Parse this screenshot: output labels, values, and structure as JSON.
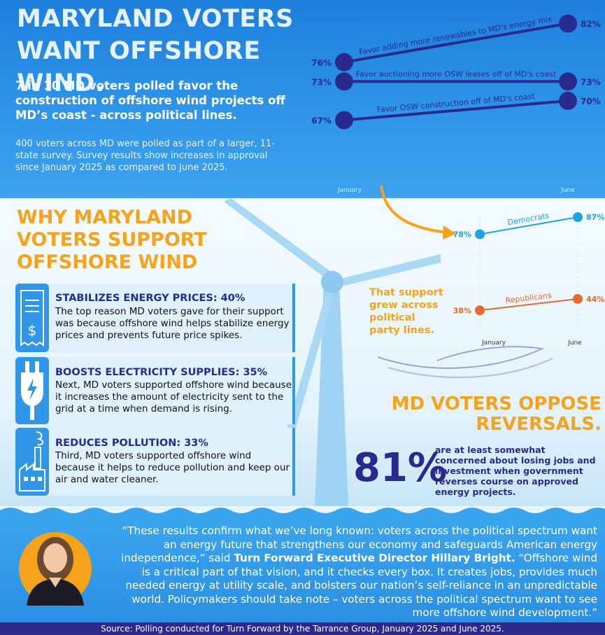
{
  "title": "MARYLAND VOTERS WANT OFFSHORE WIND.",
  "lead": {
    "emphasis": "7 in 10",
    "text": " MD voters polled favor the construction of offshore wind projects off MD’s coast - across political lines."
  },
  "sub_text": "400 voters across MD were polled as part of a larger, 11-state survey. Survey results show increases in approval since January 2025 as compared to June 2025.",
  "why_heading": "WHY MARYLAND VOTERS SUPPORT OFFSHORE WIND",
  "reasons": [
    {
      "heading": "STABILIZES ENERGY PRICES: 40%",
      "body": "The top reason MD voters gave for their support was because offshore wind helps stabilize energy prices and prevents future price spikes.",
      "icon": "receipt-dollar-icon"
    },
    {
      "heading": "BOOSTS ELECTRICITY SUPPLIES: 35%",
      "body": "Next, MD voters supported offshore wind because it increases the amount of electricity sent to the grid at a time when demand is rising.",
      "icon": "power-plug-icon"
    },
    {
      "heading": "REDUCES POLLUTION: 33%",
      "body": "Third, MD voters supported offshore wind because it helps to reduce pollution and keep our air and water cleaner.",
      "icon": "factory-icon"
    }
  ],
  "support_note": "That support grew across political party lines.",
  "oppose_heading": "MD VOTERS OPPOSE REVERSALS.",
  "stat": {
    "value": "81%",
    "text": "are at least somewhat concerned about losing jobs and investment when government reverses course on approved energy projects."
  },
  "quote": {
    "part1": "“These results confirm what we’ve long known: voters across the political spectrum want an energy future that strengthens our economy and safeguards American energy independence,” said ",
    "speaker": "Turn Forward Executive Director Hillary Bright.",
    "part2": " “Offshore wind is a critical part of that vision, and it checks every box. It creates jobs, provides much needed energy at utility scale, and bolsters our nation’s self-reliance in an unpredictable world. Policymakers should take note – voters across the political spectrum want to see more offshore wind development.”"
  },
  "source": "Source: Polling conducted for Turn Forward by the Tarrance Group, January 2025 and June 2025.",
  "colors": {
    "navy": "#2a2a8e",
    "orange": "#f7a21b",
    "blue": "#2f96ea",
    "dem": "#1ea3e6",
    "rep": "#e46a2d"
  },
  "chart_data": [
    {
      "type": "line",
      "title": "",
      "x": [
        "January",
        "June"
      ],
      "ylim": [
        60,
        85
      ],
      "series": [
        {
          "name": "Favor adding more renewables to MD's energy mix",
          "values": [
            76,
            82
          ],
          "labels": [
            "76%",
            "82%"
          ]
        },
        {
          "name": "Favor auctioning more OSW leases off of MD's coast",
          "values": [
            73,
            73
          ],
          "labels": [
            "73%",
            "73%"
          ]
        },
        {
          "name": "Favor OSW construction off of MD's coast",
          "values": [
            67,
            70
          ],
          "labels": [
            "67%",
            "70%"
          ]
        }
      ]
    },
    {
      "type": "line",
      "title": "",
      "x": [
        "January",
        "June"
      ],
      "ylim": [
        30,
        90
      ],
      "series": [
        {
          "name": "Democrats",
          "values": [
            78,
            87
          ],
          "labels": [
            "78%",
            "87%"
          ]
        },
        {
          "name": "Republicans",
          "values": [
            38,
            44
          ],
          "labels": [
            "38%",
            "44%"
          ]
        }
      ]
    }
  ]
}
